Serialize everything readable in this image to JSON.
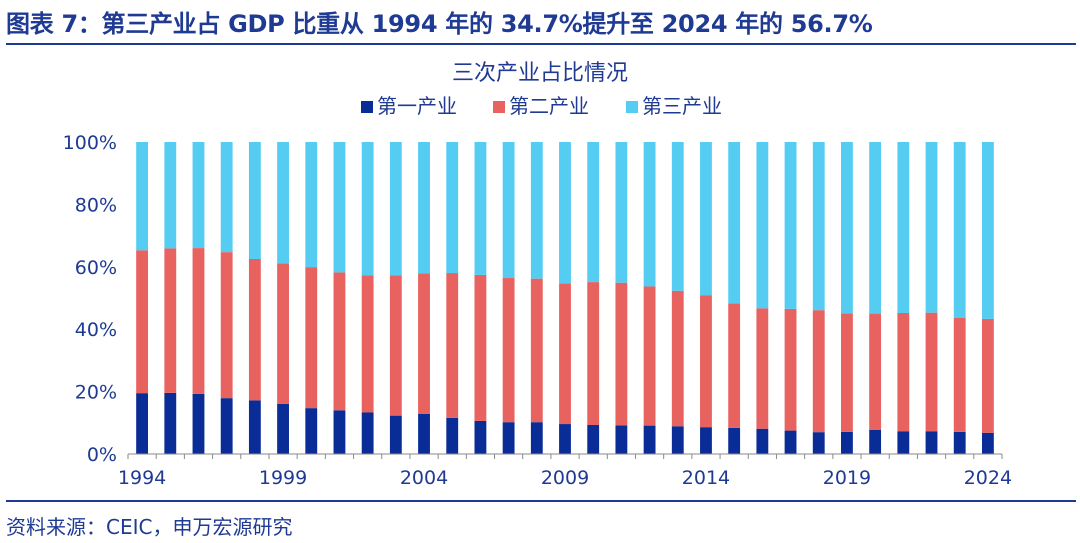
{
  "figure_title": "图表 7：第三产业占 GDP 比重从 1994 年的 34.7%提升至 2024 年的 56.7%",
  "source": "资料来源：CEIC，申万宏源研究",
  "colors": {
    "primary": "#0a2c96",
    "secondary": "#e8625f",
    "tertiary": "#55cdf2",
    "text": "#1f3a93"
  },
  "chart_data": {
    "type": "bar",
    "stacked": true,
    "title": "三次产业占比情况",
    "legend": {
      "position": "top",
      "entries": [
        "第一产业",
        "第二产业",
        "第三产业"
      ]
    },
    "xlabel": "",
    "ylabel": "",
    "ylim": [
      0,
      100
    ],
    "y_ticks": [
      "0%",
      "20%",
      "40%",
      "60%",
      "80%",
      "100%"
    ],
    "x_tick_labels": [
      "1994",
      "1999",
      "2004",
      "2009",
      "2014",
      "2019",
      "2024"
    ],
    "categories": [
      "1994",
      "1995",
      "1996",
      "1997",
      "1998",
      "1999",
      "2000",
      "2001",
      "2002",
      "2003",
      "2004",
      "2005",
      "2006",
      "2007",
      "2008",
      "2009",
      "2010",
      "2011",
      "2012",
      "2013",
      "2014",
      "2015",
      "2016",
      "2017",
      "2018",
      "2019",
      "2020",
      "2021",
      "2022",
      "2023",
      "2024"
    ],
    "series": [
      {
        "name": "第一产业",
        "values": [
          19.5,
          19.6,
          19.3,
          17.9,
          17.2,
          16.1,
          14.7,
          14.0,
          13.3,
          12.3,
          12.9,
          11.6,
          10.6,
          10.2,
          10.2,
          9.6,
          9.3,
          9.2,
          9.1,
          8.9,
          8.6,
          8.4,
          8.1,
          7.5,
          7.0,
          7.1,
          7.7,
          7.3,
          7.3,
          7.1,
          6.8
        ]
      },
      {
        "name": "第二产业",
        "values": [
          45.8,
          46.3,
          46.7,
          46.8,
          45.3,
          45.0,
          45.2,
          44.2,
          43.9,
          45.0,
          45.0,
          46.4,
          46.8,
          46.2,
          46.0,
          45.1,
          45.8,
          45.7,
          44.6,
          43.4,
          42.2,
          39.9,
          38.6,
          39.0,
          39.1,
          38.0,
          37.3,
          37.9,
          38.0,
          36.6,
          36.5
        ]
      },
      {
        "name": "第三产业",
        "values": [
          34.7,
          34.1,
          34.0,
          35.3,
          37.5,
          38.9,
          40.1,
          41.8,
          42.8,
          42.7,
          42.1,
          42.0,
          42.6,
          43.6,
          43.8,
          45.3,
          44.9,
          45.1,
          46.3,
          47.7,
          49.2,
          51.7,
          53.3,
          53.5,
          53.9,
          54.9,
          55.0,
          54.8,
          54.7,
          56.3,
          56.7
        ]
      }
    ]
  }
}
